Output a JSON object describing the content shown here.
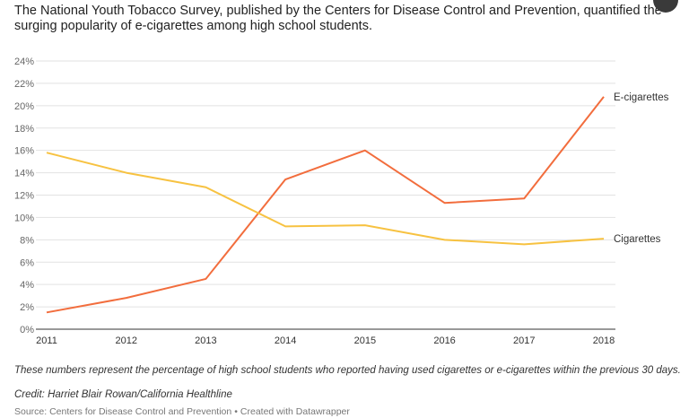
{
  "title": "The National Youth Tobacco Survey, published by the Centers for Disease Control and Prevention, quantified the surging popularity of e-cigarettes among high school students.",
  "note": "These numbers represent the percentage of high school students who reported having used cigarettes or e-cigarettes within the previous 30 days.",
  "credit": "Credit: Harriet Blair Rowan/California Healthline",
  "source_text": "Source: Centers for Disease Control and Prevention",
  "separator": "•",
  "created_with": "Created with Datawrapper",
  "chart_data": {
    "type": "line",
    "x": [
      "2011",
      "2012",
      "2013",
      "2014",
      "2015",
      "2016",
      "2017",
      "2018"
    ],
    "series": [
      {
        "name": "E-cigarettes",
        "color": "#f26d3d",
        "values": [
          1.5,
          2.8,
          4.5,
          13.4,
          16.0,
          11.3,
          11.7,
          20.8
        ]
      },
      {
        "name": "Cigarettes",
        "color": "#f7c241",
        "values": [
          15.8,
          14.0,
          12.7,
          9.2,
          9.3,
          8.0,
          7.6,
          8.1
        ]
      }
    ],
    "yticks": [
      "0%",
      "2%",
      "4%",
      "6%",
      "8%",
      "10%",
      "12%",
      "14%",
      "16%",
      "18%",
      "20%",
      "22%",
      "24%"
    ],
    "ylim": [
      0,
      24
    ],
    "grid": true,
    "legend": "direct labels at line ends"
  }
}
